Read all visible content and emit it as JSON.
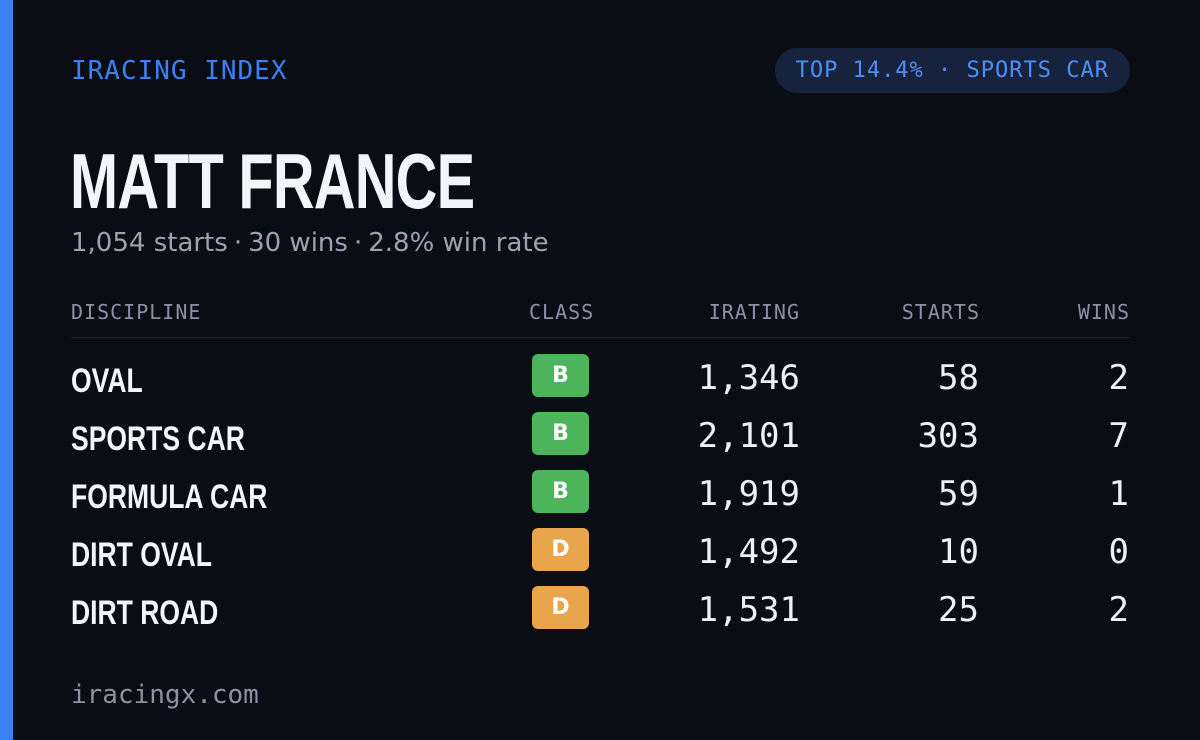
{
  "brand": {
    "label": "IRACING INDEX",
    "color": "#3b82f6"
  },
  "rank_pill": {
    "label": "TOP 14.4% · SPORTS CAR"
  },
  "driver": {
    "name": "MATT FRANCE",
    "starts_text": "1,054 starts",
    "wins_text": "30 wins",
    "win_rate_text": "2.8% win rate",
    "separator": "·"
  },
  "table": {
    "headers": {
      "discipline": "DISCIPLINE",
      "class": "CLASS",
      "irating": "IRATING",
      "starts": "STARTS",
      "wins": "WINS"
    },
    "rows": [
      {
        "discipline": "OVAL",
        "class": "B",
        "class_color": "#4cb45a",
        "irating": "1,346",
        "starts": "58",
        "wins": "2"
      },
      {
        "discipline": "SPORTS CAR",
        "class": "B",
        "class_color": "#4cb45a",
        "irating": "2,101",
        "starts": "303",
        "wins": "7"
      },
      {
        "discipline": "FORMULA CAR",
        "class": "B",
        "class_color": "#4cb45a",
        "irating": "1,919",
        "starts": "59",
        "wins": "1"
      },
      {
        "discipline": "DIRT OVAL",
        "class": "D",
        "class_color": "#e8a54c",
        "irating": "1,492",
        "starts": "10",
        "wins": "0"
      },
      {
        "discipline": "DIRT ROAD",
        "class": "D",
        "class_color": "#e8a54c",
        "irating": "1,531",
        "starts": "25",
        "wins": "2"
      }
    ]
  },
  "footer": {
    "site": "iracingx.com"
  }
}
